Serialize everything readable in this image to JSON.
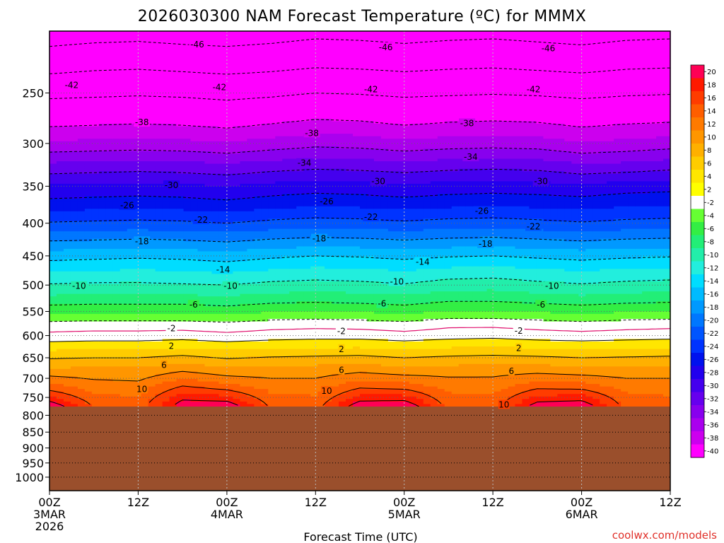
{
  "chart_data": {
    "type": "heatmap",
    "title": "2026030300 NAM Forecast Temperature (ºC) for MMMX",
    "xlabel": "Forecast Time (UTC)",
    "ylabel": "",
    "credit": "coolwx.com/models",
    "y_log_scale": true,
    "ylim": [
      1050,
      200
    ],
    "y_ticks": [
      250,
      300,
      350,
      400,
      450,
      500,
      550,
      600,
      650,
      700,
      750,
      800,
      850,
      900,
      950,
      1000
    ],
    "y_tick_labels": [
      "250",
      "300",
      "350",
      "400",
      "450",
      "500",
      "550",
      "600",
      "650",
      "700",
      "750",
      "800",
      "850",
      "900",
      "950",
      "1000"
    ],
    "xlim_hours": [
      0,
      84
    ],
    "x_ticks": [
      {
        "hour": 0,
        "l1": "00Z",
        "l2": "3MAR",
        "l3": "2026"
      },
      {
        "hour": 12,
        "l1": "12Z",
        "l2": "",
        "l3": ""
      },
      {
        "hour": 24,
        "l1": "00Z",
        "l2": "4MAR",
        "l3": ""
      },
      {
        "hour": 36,
        "l1": "12Z",
        "l2": "",
        "l3": ""
      },
      {
        "hour": 48,
        "l1": "00Z",
        "l2": "5MAR",
        "l3": ""
      },
      {
        "hour": 60,
        "l1": "12Z",
        "l2": "",
        "l3": ""
      },
      {
        "hour": 72,
        "l1": "00Z",
        "l2": "6MAR",
        "l3": ""
      },
      {
        "hour": 84,
        "l1": "12Z",
        "l2": "",
        "l3": ""
      }
    ],
    "surface_pressure_hpa": 775,
    "surface_color": "#9a4f2c",
    "grid": true,
    "contour_interval_c": 4,
    "profile_pressures_hpa": [
      200,
      225,
      250,
      275,
      300,
      325,
      350,
      375,
      400,
      425,
      450,
      475,
      500,
      525,
      550,
      575,
      600,
      625,
      650,
      675,
      700,
      725,
      750,
      775
    ],
    "temperature_profiles": [
      {
        "hour": 0,
        "temps_c": [
          -52.0,
          -47.6,
          -42.8,
          -39.0,
          -35.6,
          -31.4,
          -27.8,
          -25.0,
          -21.8,
          -18.2,
          -14.8,
          -12.2,
          -9.8,
          -7.4,
          -4.6,
          -1.4,
          0.6,
          3.2,
          5.8,
          8.0,
          10.6,
          13.2,
          16.4,
          20.2
        ]
      },
      {
        "hour": 6,
        "temps_c": [
          -51.6,
          -47.0,
          -42.6,
          -38.8,
          -35.4,
          -31.2,
          -27.6,
          -24.8,
          -21.6,
          -18.0,
          -14.6,
          -12.0,
          -9.6,
          -7.2,
          -4.4,
          -1.2,
          0.8,
          3.4,
          6.0,
          8.2,
          9.8,
          11.4,
          12.6,
          13.8
        ]
      },
      {
        "hour": 12,
        "temps_c": [
          -51.4,
          -46.8,
          -42.4,
          -38.6,
          -35.2,
          -31.0,
          -27.4,
          -24.6,
          -21.4,
          -17.8,
          -14.4,
          -11.8,
          -9.6,
          -7.2,
          -4.4,
          -1.2,
          0.8,
          3.4,
          6.0,
          8.2,
          9.6,
          11.0,
          12.0,
          12.8
        ]
      },
      {
        "hour": 18,
        "temps_c": [
          -51.8,
          -47.2,
          -42.6,
          -38.8,
          -35.4,
          -31.2,
          -27.6,
          -24.8,
          -21.6,
          -18.0,
          -14.6,
          -12.0,
          -9.8,
          -7.2,
          -4.4,
          -1.2,
          1.0,
          3.8,
          6.6,
          9.2,
          11.8,
          14.6,
          17.4,
          19.6
        ]
      },
      {
        "hour": 24,
        "temps_c": [
          -52.0,
          -47.6,
          -43.0,
          -39.2,
          -35.8,
          -31.6,
          -28.0,
          -25.2,
          -22.0,
          -18.4,
          -15.0,
          -12.4,
          -10.0,
          -7.6,
          -4.8,
          -1.6,
          0.6,
          3.2,
          5.8,
          8.2,
          10.6,
          13.4,
          16.6,
          20.0
        ]
      },
      {
        "hour": 30,
        "temps_c": [
          -51.6,
          -47.2,
          -42.6,
          -38.6,
          -35.2,
          -31.0,
          -27.4,
          -24.6,
          -21.4,
          -17.8,
          -14.4,
          -11.8,
          -9.4,
          -7.0,
          -4.2,
          -1.0,
          1.0,
          3.6,
          6.2,
          8.4,
          10.0,
          11.4,
          12.6,
          13.6
        ]
      },
      {
        "hour": 36,
        "temps_c": [
          -51.0,
          -46.6,
          -42.0,
          -38.0,
          -34.6,
          -30.6,
          -27.0,
          -24.2,
          -21.0,
          -17.4,
          -14.0,
          -11.4,
          -9.2,
          -6.8,
          -4.0,
          -0.8,
          1.2,
          3.8,
          6.4,
          8.6,
          10.0,
          11.2,
          12.2,
          13.0
        ]
      },
      {
        "hour": 42,
        "temps_c": [
          -51.2,
          -46.8,
          -42.2,
          -38.2,
          -34.8,
          -30.8,
          -27.2,
          -24.4,
          -21.2,
          -17.6,
          -14.2,
          -11.6,
          -9.4,
          -7.0,
          -4.2,
          -1.0,
          1.2,
          3.8,
          6.6,
          9.0,
          11.4,
          14.0,
          16.8,
          19.8
        ]
      },
      {
        "hour": 48,
        "temps_c": [
          -51.6,
          -47.2,
          -42.6,
          -38.8,
          -35.4,
          -31.2,
          -27.6,
          -24.8,
          -21.6,
          -18.0,
          -14.6,
          -12.0,
          -9.8,
          -7.4,
          -4.6,
          -1.4,
          0.8,
          3.4,
          6.0,
          8.4,
          10.8,
          13.6,
          16.8,
          20.4
        ]
      },
      {
        "hour": 54,
        "temps_c": [
          -51.2,
          -46.8,
          -42.4,
          -38.4,
          -35.0,
          -30.8,
          -27.2,
          -24.4,
          -21.2,
          -17.6,
          -14.2,
          -11.4,
          -9.0,
          -6.6,
          -3.8,
          -0.6,
          1.2,
          3.8,
          6.4,
          8.6,
          10.2,
          11.6,
          12.4,
          13.2
        ]
      },
      {
        "hour": 60,
        "temps_c": [
          -51.0,
          -46.6,
          -42.2,
          -38.2,
          -34.8,
          -30.6,
          -27.0,
          -24.2,
          -21.0,
          -17.4,
          -14.0,
          -11.2,
          -8.8,
          -6.6,
          -3.8,
          -0.6,
          1.4,
          4.0,
          6.6,
          8.8,
          10.2,
          11.4,
          12.2,
          13.0
        ]
      },
      {
        "hour": 66,
        "temps_c": [
          -51.4,
          -47.0,
          -42.4,
          -38.4,
          -35.0,
          -30.8,
          -27.2,
          -24.4,
          -21.4,
          -17.8,
          -14.4,
          -11.6,
          -9.4,
          -7.0,
          -4.2,
          -1.0,
          1.0,
          3.6,
          6.4,
          8.8,
          11.2,
          13.8,
          16.6,
          19.4
        ]
      },
      {
        "hour": 72,
        "temps_c": [
          -51.8,
          -47.4,
          -42.8,
          -39.0,
          -35.8,
          -31.6,
          -27.6,
          -24.6,
          -21.8,
          -18.2,
          -14.8,
          -12.0,
          -9.8,
          -7.4,
          -4.6,
          -1.4,
          0.8,
          3.4,
          6.0,
          8.4,
          10.8,
          13.6,
          16.8,
          20.2
        ]
      },
      {
        "hour": 78,
        "temps_c": [
          -51.2,
          -46.8,
          -42.4,
          -38.6,
          -35.4,
          -31.4,
          -27.0,
          -24.2,
          -21.4,
          -17.8,
          -14.4,
          -11.6,
          -9.4,
          -7.0,
          -4.2,
          -1.0,
          1.0,
          3.6,
          6.2,
          8.4,
          10.0,
          11.4,
          12.4,
          13.2
        ]
      },
      {
        "hour": 84,
        "temps_c": [
          -51.0,
          -46.6,
          -42.2,
          -38.4,
          -35.0,
          -30.8,
          -26.8,
          -24.0,
          -21.2,
          -17.6,
          -14.2,
          -11.4,
          -9.2,
          -6.8,
          -4.0,
          -0.8,
          1.2,
          3.8,
          6.4,
          8.6,
          10.0,
          11.2,
          12.2,
          13.0
        ]
      }
    ],
    "colorbar": {
      "levels": [
        20,
        18,
        16,
        14,
        12,
        10,
        8,
        6,
        4,
        2,
        -2,
        -4,
        -6,
        -8,
        -10,
        -12,
        -14,
        -16,
        -18,
        -20,
        -22,
        -24,
        -26,
        -28,
        -30,
        -32,
        -34,
        -36,
        -38,
        -40
      ],
      "tick_labels": [
        "20",
        "18",
        "16",
        "14",
        "12",
        "10",
        "8",
        "6",
        "4",
        "2",
        "-2",
        "-4",
        "-6",
        "-8",
        "-10",
        "-12",
        "-14",
        "-16",
        "-18",
        "-20",
        "-22",
        "-24",
        "-26",
        "-28",
        "-30",
        "-32",
        "-34",
        "-36",
        "-38",
        "-40"
      ],
      "colors": [
        "#ff0055",
        "#ff1a00",
        "#ff3c00",
        "#ff5e00",
        "#ff7a00",
        "#ff9600",
        "#ffb000",
        "#ffcc00",
        "#ffe600",
        "#ffff00",
        "#ffffff",
        "#66ff33",
        "#33ee44",
        "#22ee77",
        "#22eeaa",
        "#22eedd",
        "#00ddff",
        "#00bbff",
        "#0099ff",
        "#0077ff",
        "#0055ff",
        "#0033ff",
        "#0011ee",
        "#2200ee",
        "#4400ee",
        "#6600ee",
        "#8800ee",
        "#aa00ee",
        "#cc00ee",
        "#ff00ff"
      ]
    },
    "contour_labels": [
      {
        "hour": 20,
        "hpa": 210,
        "text": "-46"
      },
      {
        "hour": 45.5,
        "hpa": 212,
        "text": "-46"
      },
      {
        "hour": 67.5,
        "hpa": 213,
        "text": "-46"
      },
      {
        "hour": 3,
        "hpa": 243,
        "text": "-42"
      },
      {
        "hour": 23,
        "hpa": 245,
        "text": "-42"
      },
      {
        "hour": 43.5,
        "hpa": 247,
        "text": "-42"
      },
      {
        "hour": 65.5,
        "hpa": 247,
        "text": "-42"
      },
      {
        "hour": 12.5,
        "hpa": 278,
        "text": "-38"
      },
      {
        "hour": 35.5,
        "hpa": 289,
        "text": "-38"
      },
      {
        "hour": 56.5,
        "hpa": 279,
        "text": "-38"
      },
      {
        "hour": 34.5,
        "hpa": 322,
        "text": "-34"
      },
      {
        "hour": 57,
        "hpa": 315,
        "text": "-34"
      },
      {
        "hour": 16.5,
        "hpa": 349,
        "text": "-30"
      },
      {
        "hour": 44.5,
        "hpa": 344,
        "text": "-30"
      },
      {
        "hour": 66.5,
        "hpa": 344,
        "text": "-30"
      },
      {
        "hour": 10.5,
        "hpa": 375,
        "text": "-26"
      },
      {
        "hour": 37.5,
        "hpa": 370,
        "text": "-26"
      },
      {
        "hour": 58.5,
        "hpa": 383,
        "text": "-26"
      },
      {
        "hour": 20.5,
        "hpa": 395,
        "text": "-22"
      },
      {
        "hour": 43.5,
        "hpa": 391,
        "text": "-22"
      },
      {
        "hour": 65.5,
        "hpa": 405,
        "text": "-22"
      },
      {
        "hour": 12.5,
        "hpa": 427,
        "text": "-18"
      },
      {
        "hour": 36.5,
        "hpa": 423,
        "text": "-18"
      },
      {
        "hour": 59,
        "hpa": 431,
        "text": "-18"
      },
      {
        "hour": 23.5,
        "hpa": 473,
        "text": "-14"
      },
      {
        "hour": 50.5,
        "hpa": 460,
        "text": "-14"
      },
      {
        "hour": 4,
        "hpa": 502,
        "text": "-10"
      },
      {
        "hour": 24.5,
        "hpa": 502,
        "text": "-10"
      },
      {
        "hour": 47,
        "hpa": 494,
        "text": "-10"
      },
      {
        "hour": 68,
        "hpa": 502,
        "text": "-10"
      },
      {
        "hour": 19.5,
        "hpa": 537,
        "text": "-6"
      },
      {
        "hour": 45,
        "hpa": 535,
        "text": "-6"
      },
      {
        "hour": 66.5,
        "hpa": 537,
        "text": "-6"
      },
      {
        "hour": 16.5,
        "hpa": 585,
        "text": "-2"
      },
      {
        "hour": 39.5,
        "hpa": 591,
        "text": "-2"
      },
      {
        "hour": 63.5,
        "hpa": 590,
        "text": "-2"
      },
      {
        "hour": 16.5,
        "hpa": 623,
        "text": "2"
      },
      {
        "hour": 39.5,
        "hpa": 630,
        "text": "2"
      },
      {
        "hour": 63.5,
        "hpa": 628,
        "text": "2"
      },
      {
        "hour": 15.5,
        "hpa": 668,
        "text": "6"
      },
      {
        "hour": 39.5,
        "hpa": 680,
        "text": "6"
      },
      {
        "hour": 62.5,
        "hpa": 682,
        "text": "6"
      },
      {
        "hour": 12.5,
        "hpa": 728,
        "text": "10"
      },
      {
        "hour": 37.5,
        "hpa": 733,
        "text": "10"
      },
      {
        "hour": 61.5,
        "hpa": 770,
        "text": "10"
      }
    ]
  }
}
